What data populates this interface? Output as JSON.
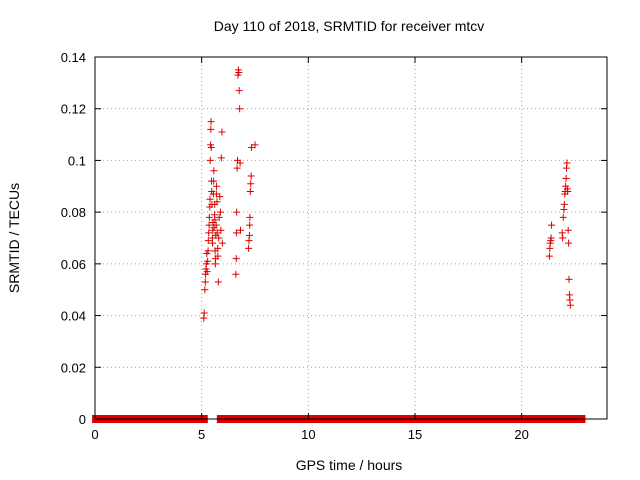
{
  "chart_data": {
    "type": "scatter",
    "title": "Day 110 of 2018, SRMTID for receiver mtcv",
    "xlabel": "GPS time / hours",
    "ylabel": "SRMTID / TECUs",
    "xlim": [
      0,
      24
    ],
    "ylim": [
      0,
      0.14
    ],
    "x_ticks": [
      0,
      5,
      10,
      15,
      20
    ],
    "y_ticks": [
      0,
      0.02,
      0.04,
      0.06,
      0.08,
      0.1,
      0.12,
      0.14
    ],
    "x_tick_labels": [
      "0",
      "5",
      "10",
      "15",
      "20"
    ],
    "y_tick_labels": [
      "0",
      "0.02",
      "0.04",
      "0.06",
      "0.08",
      "0.1",
      "0.12",
      "0.14"
    ],
    "grid": true,
    "marker": "+",
    "color": "#dd0000",
    "baseline_segments": [
      [
        0.05,
        5.1
      ],
      [
        5.9,
        6.7
      ],
      [
        6.9,
        7.25
      ],
      [
        7.35,
        21.9
      ],
      [
        22.2,
        22.8
      ]
    ],
    "points": [
      [
        5.1,
        0.039
      ],
      [
        5.12,
        0.041
      ],
      [
        5.15,
        0.05
      ],
      [
        5.17,
        0.053
      ],
      [
        5.18,
        0.056
      ],
      [
        5.2,
        0.058
      ],
      [
        5.22,
        0.06
      ],
      [
        5.24,
        0.064
      ],
      [
        5.26,
        0.057
      ],
      [
        5.28,
        0.061
      ],
      [
        5.3,
        0.065
      ],
      [
        5.31,
        0.069
      ],
      [
        5.33,
        0.072
      ],
      [
        5.35,
        0.075
      ],
      [
        5.36,
        0.078
      ],
      [
        5.38,
        0.082
      ],
      [
        5.39,
        0.085
      ],
      [
        5.4,
        0.1
      ],
      [
        5.42,
        0.106
      ],
      [
        5.43,
        0.112
      ],
      [
        5.44,
        0.115
      ],
      [
        5.45,
        0.105
      ],
      [
        5.46,
        0.092
      ],
      [
        5.47,
        0.088
      ],
      [
        5.48,
        0.083
      ],
      [
        5.5,
        0.07
      ],
      [
        5.51,
        0.068
      ],
      [
        5.52,
        0.073
      ],
      [
        5.53,
        0.076
      ],
      [
        5.55,
        0.087
      ],
      [
        5.56,
        0.092
      ],
      [
        5.57,
        0.096
      ],
      [
        5.58,
        0.074
      ],
      [
        5.6,
        0.079
      ],
      [
        5.61,
        0.083
      ],
      [
        5.62,
        0.077
      ],
      [
        5.63,
        0.065
      ],
      [
        5.64,
        0.06
      ],
      [
        5.65,
        0.062
      ],
      [
        5.66,
        0.071
      ],
      [
        5.68,
        0.075
      ],
      [
        5.69,
        0.087
      ],
      [
        5.7,
        0.09
      ],
      [
        5.72,
        0.084
      ],
      [
        5.73,
        0.072
      ],
      [
        5.75,
        0.066
      ],
      [
        5.76,
        0.063
      ],
      [
        5.78,
        0.053
      ],
      [
        5.8,
        0.07
      ],
      [
        5.82,
        0.078
      ],
      [
        5.85,
        0.086
      ],
      [
        5.88,
        0.08
      ],
      [
        5.9,
        0.073
      ],
      [
        5.92,
        0.101
      ],
      [
        5.95,
        0.111
      ],
      [
        5.97,
        0.068
      ],
      [
        6.6,
        0.056
      ],
      [
        6.62,
        0.062
      ],
      [
        6.63,
        0.072
      ],
      [
        6.64,
        0.08
      ],
      [
        6.66,
        0.097
      ],
      [
        6.68,
        0.1
      ],
      [
        6.7,
        0.133
      ],
      [
        6.72,
        0.135
      ],
      [
        6.74,
        0.134
      ],
      [
        6.76,
        0.127
      ],
      [
        6.78,
        0.12
      ],
      [
        6.8,
        0.099
      ],
      [
        6.82,
        0.073
      ],
      [
        7.2,
        0.066
      ],
      [
        7.22,
        0.069
      ],
      [
        7.24,
        0.071
      ],
      [
        7.25,
        0.075
      ],
      [
        7.26,
        0.078
      ],
      [
        7.28,
        0.088
      ],
      [
        7.3,
        0.091
      ],
      [
        7.32,
        0.094
      ],
      [
        7.34,
        0.105
      ],
      [
        7.5,
        0.106
      ],
      [
        21.3,
        0.063
      ],
      [
        21.32,
        0.066
      ],
      [
        21.34,
        0.068
      ],
      [
        21.36,
        0.069
      ],
      [
        21.38,
        0.07
      ],
      [
        21.4,
        0.075
      ],
      [
        21.9,
        0.072
      ],
      [
        21.92,
        0.07
      ],
      [
        21.95,
        0.078
      ],
      [
        21.98,
        0.081
      ],
      [
        22.0,
        0.083
      ],
      [
        22.02,
        0.087
      ],
      [
        22.04,
        0.088
      ],
      [
        22.06,
        0.09
      ],
      [
        22.08,
        0.093
      ],
      [
        22.1,
        0.097
      ],
      [
        22.12,
        0.099
      ],
      [
        22.14,
        0.089
      ],
      [
        22.16,
        0.088
      ],
      [
        22.18,
        0.073
      ],
      [
        22.2,
        0.068
      ],
      [
        22.22,
        0.054
      ],
      [
        22.24,
        0.048
      ],
      [
        22.26,
        0.046
      ],
      [
        22.28,
        0.044
      ]
    ]
  }
}
